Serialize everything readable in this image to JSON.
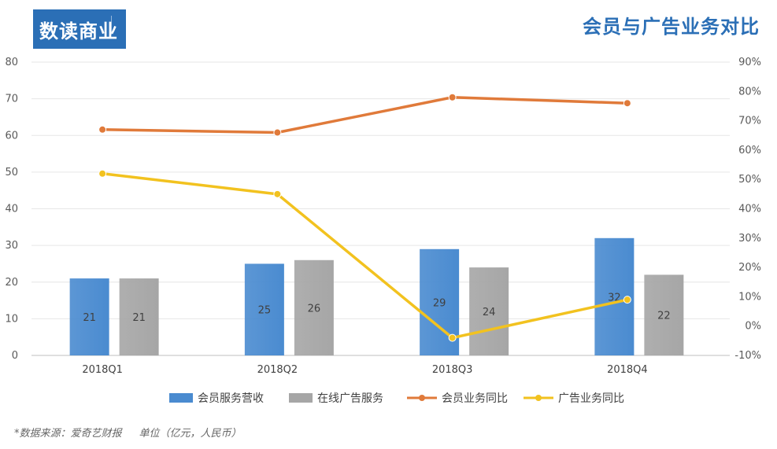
{
  "logo": {
    "text": "数读商业"
  },
  "title": "会员与广告业务对比",
  "source": {
    "text": "*数据来源：爱奇艺财报",
    "unit": "单位（亿元，人民币）"
  },
  "chart_data": {
    "type": "bar",
    "categories": [
      "2018Q1",
      "2018Q2",
      "2018Q3",
      "2018Q4"
    ],
    "y_left": {
      "min": 0,
      "max": 80,
      "step": 10,
      "ticks": [
        "0",
        "10",
        "20",
        "30",
        "40",
        "50",
        "60",
        "70",
        "80"
      ]
    },
    "y_right": {
      "min": -10,
      "max": 90,
      "step": 10,
      "ticks": [
        "-10%",
        "0%",
        "10%",
        "20%",
        "30%",
        "40%",
        "50%",
        "60%",
        "70%",
        "80%",
        "90%"
      ]
    },
    "grid": true,
    "legend_position": "bottom",
    "series": [
      {
        "name": "会员服务营收",
        "kind": "bar",
        "axis": "left",
        "color": "#4a8bd0",
        "values": [
          21,
          25,
          29,
          32
        ],
        "labels": [
          "21",
          "25",
          "29",
          "32"
        ]
      },
      {
        "name": "在线广告服务",
        "kind": "bar",
        "axis": "left",
        "color": "#a6a6a6",
        "values": [
          21,
          26,
          24,
          22
        ],
        "labels": [
          "21",
          "26",
          "24",
          "22"
        ]
      },
      {
        "name": "会员业务同比",
        "kind": "line",
        "axis": "right",
        "color": "#e07a3a",
        "values": [
          67,
          66,
          78,
          76
        ]
      },
      {
        "name": "广告业务同比",
        "kind": "line",
        "axis": "right",
        "color": "#f2c21f",
        "values": [
          52,
          45,
          -4,
          9
        ]
      }
    ]
  }
}
